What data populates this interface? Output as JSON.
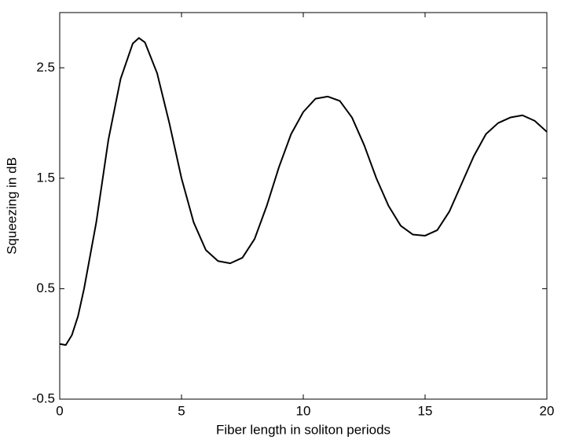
{
  "chart_data": {
    "type": "line",
    "xlabel": "Fiber length in soliton periods",
    "ylabel": "Squeezing in dB",
    "x": [
      0,
      0.25,
      0.5,
      0.75,
      1,
      1.5,
      2,
      2.5,
      3,
      3.25,
      3.5,
      4,
      4.5,
      5,
      5.5,
      6,
      6.5,
      7,
      7.5,
      8,
      8.5,
      9,
      9.5,
      10,
      10.5,
      11,
      11.5,
      12,
      12.5,
      13,
      13.5,
      14,
      14.5,
      15,
      15.5,
      16,
      16.5,
      17,
      17.5,
      18,
      18.5,
      19,
      19.5,
      20
    ],
    "series": [
      {
        "color": "#000000",
        "values": [
          0,
          -0.01,
          0.08,
          0.25,
          0.5,
          1.1,
          1.85,
          2.4,
          2.72,
          2.77,
          2.73,
          2.45,
          2.0,
          1.5,
          1.1,
          0.85,
          0.75,
          0.73,
          0.78,
          0.95,
          1.25,
          1.6,
          1.9,
          2.1,
          2.22,
          2.24,
          2.2,
          2.05,
          1.8,
          1.5,
          1.25,
          1.07,
          0.99,
          0.98,
          1.03,
          1.2,
          1.45,
          1.7,
          1.9,
          2.0,
          2.05,
          2.07,
          2.02,
          1.92
        ]
      }
    ],
    "xlim": [
      0,
      20
    ],
    "xticks": [
      0,
      5,
      10,
      15,
      20
    ],
    "ylim": [
      -0.5,
      3
    ],
    "yticks": [
      -0.5,
      0.5,
      1.5,
      2.5
    ]
  }
}
